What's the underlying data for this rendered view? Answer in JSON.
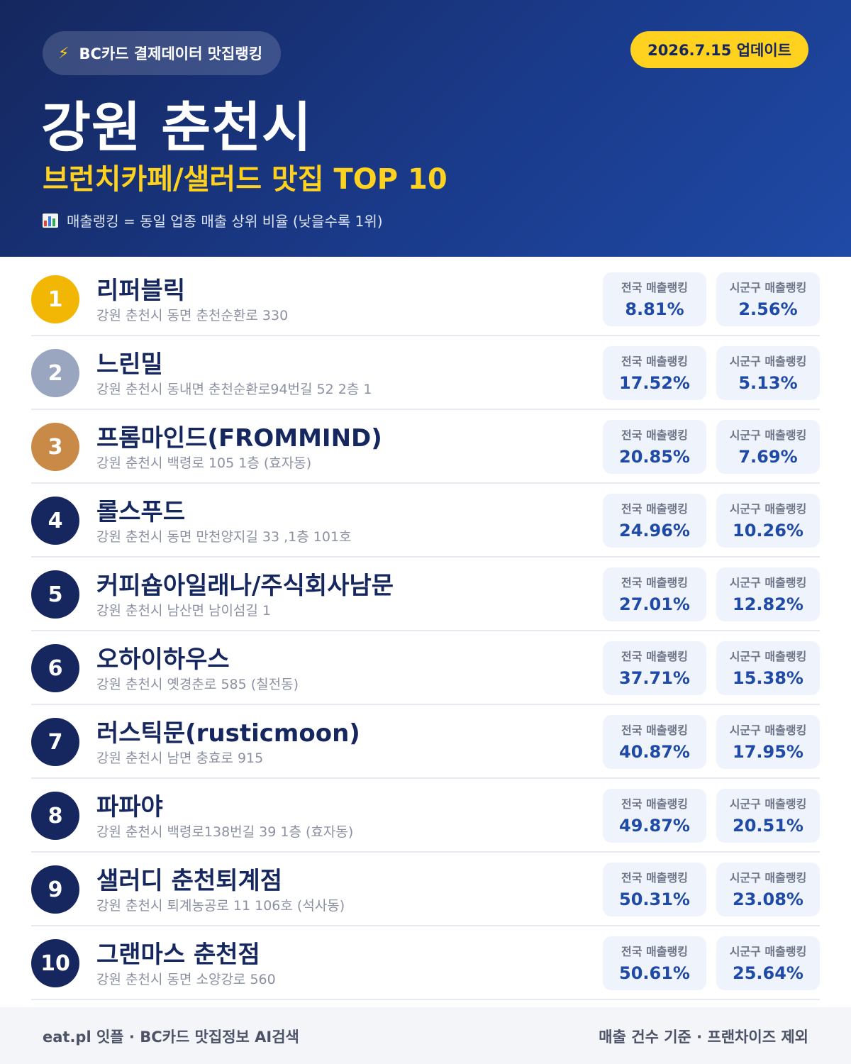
{
  "header": {
    "badge_icon": "lightning-bolt-icon",
    "badge_text": "BC카드 결제데이터 맛집랭킹",
    "update_text": "2026.7.15 업데이트",
    "title": "강원 춘천시",
    "subtitle": "브런치카페/샐러드 맛집 TOP 10",
    "note_icon": "bar-chart-icon",
    "note_text": "매출랭킹 = 동일 업종 매출 상위 비율 (낮을수록 1위)"
  },
  "stat_labels": {
    "national": "전국 매출랭킹",
    "local": "시군구 매출랭킹"
  },
  "items": [
    {
      "rank": "1",
      "name": "리퍼블릭",
      "address": "강원 춘천시 동면 춘천순환로 330",
      "national": "8.81%",
      "local": "2.56%"
    },
    {
      "rank": "2",
      "name": "느린밀",
      "address": "강원 춘천시 동내면 춘천순환로94번길 52 2층 1",
      "national": "17.52%",
      "local": "5.13%"
    },
    {
      "rank": "3",
      "name": "프롬마인드(FROMMIND)",
      "address": "강원 춘천시 백령로 105 1층 (효자동)",
      "national": "20.85%",
      "local": "7.69%"
    },
    {
      "rank": "4",
      "name": "롤스푸드",
      "address": "강원 춘천시 동면 만천양지길 33 ,1층 101호",
      "national": "24.96%",
      "local": "10.26%"
    },
    {
      "rank": "5",
      "name": "커피숍아일래나/주식회사남문",
      "address": "강원 춘천시 남산면 남이섬길 1",
      "national": "27.01%",
      "local": "12.82%"
    },
    {
      "rank": "6",
      "name": "오하이하우스",
      "address": "강원 춘천시 옛경춘로 585 (칠전동)",
      "national": "37.71%",
      "local": "15.38%"
    },
    {
      "rank": "7",
      "name": "러스틱문(rusticmoon)",
      "address": "강원 춘천시 남면 충효로 915",
      "national": "40.87%",
      "local": "17.95%"
    },
    {
      "rank": "8",
      "name": "파파야",
      "address": "강원 춘천시 백령로138번길 39 1층 (효자동)",
      "national": "49.87%",
      "local": "20.51%"
    },
    {
      "rank": "9",
      "name": "샐러디 춘천퇴계점",
      "address": "강원 춘천시 퇴계농공로 11 106호 (석사동)",
      "national": "50.31%",
      "local": "23.08%"
    },
    {
      "rank": "10",
      "name": "그랜마스 춘천점",
      "address": "강원 춘천시 동면 소양강로 560",
      "national": "50.61%",
      "local": "25.64%"
    }
  ],
  "footer": {
    "left": "eat.pl 잇플 · BC카드 맛집정보 AI검색",
    "right": "매출 건수 기준 · 프랜차이즈 제외"
  },
  "colors": {
    "header_dark": "#15275e",
    "header_light": "#1f4aa6",
    "accent_yellow": "#ffd21f",
    "gold": "#f2b705",
    "silver": "#9aa6bf",
    "bronze": "#c98a48",
    "value_blue": "#1f4aa6"
  }
}
